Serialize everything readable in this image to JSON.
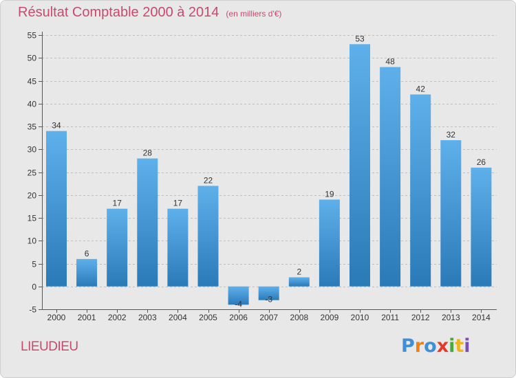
{
  "header": {
    "title": "Résultat Comptable 2000 à 2014",
    "subtitle": "(en milliers d'€)"
  },
  "footer": {
    "commune": "LIEUDIEU",
    "logo_text": "Proxiti",
    "logo_colors": [
      "#3e8fd6",
      "#e8841a",
      "#3e8fd6",
      "#e03a2b",
      "#4aa83c",
      "#f0b320",
      "#7b4fb0"
    ]
  },
  "colors": {
    "bar_top": "#5eb0ea",
    "bar_bottom": "#2a7ab8",
    "axis": "#555555",
    "grid": "#bdbdbd",
    "label": "#333333"
  },
  "chart_data": {
    "type": "bar",
    "title": "Résultat Comptable 2000 à 2014",
    "subtitle": "(en milliers d'€)",
    "xlabel": "",
    "ylabel": "",
    "categories": [
      "2000",
      "2001",
      "2002",
      "2003",
      "2004",
      "2005",
      "2006",
      "2007",
      "2008",
      "2009",
      "2010",
      "2011",
      "2012",
      "2013",
      "2014"
    ],
    "values": [
      34,
      6,
      17,
      28,
      17,
      22,
      -4,
      -3,
      2,
      19,
      53,
      48,
      42,
      32,
      26
    ],
    "ylim": [
      -5,
      55
    ],
    "yticks": [
      -5,
      0,
      5,
      10,
      15,
      20,
      25,
      30,
      35,
      40,
      45,
      50,
      55
    ],
    "grid": true,
    "data_labels": true
  }
}
